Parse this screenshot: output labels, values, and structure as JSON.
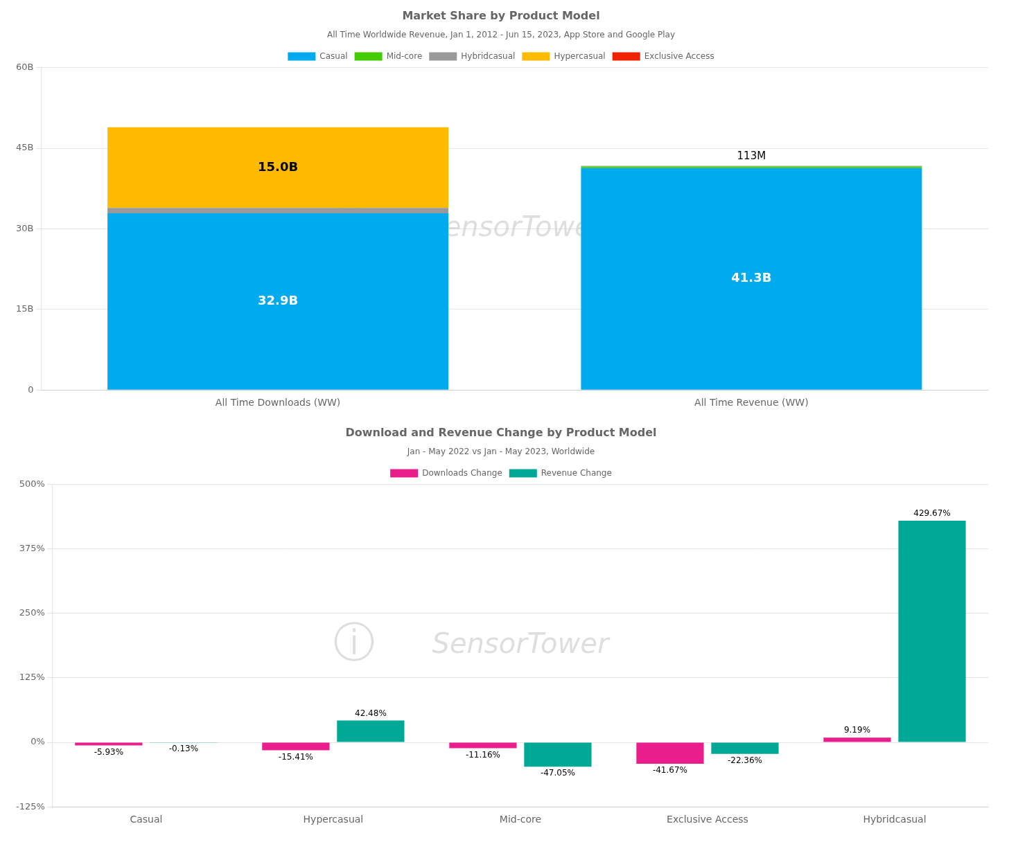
{
  "chart_data": [
    {
      "type": "bar",
      "title": "Market Share by Product Model",
      "subtitle": "All Time Worldwide Revenue, Jan 1, 2012 - Jun 15, 2023, App Store and Google Play",
      "stacked": true,
      "categories": [
        "All Time Downloads (WW)",
        "All Time Revenue (WW)"
      ],
      "series": [
        {
          "name": "Casual",
          "color": "#00AAEE",
          "values": [
            32.9,
            41.3
          ],
          "value_labels": [
            "32.9B",
            "41.3B"
          ]
        },
        {
          "name": "Mid-core",
          "color": "#44CC00",
          "values": [
            null,
            0.3
          ]
        },
        {
          "name": "Hybridcasual",
          "color": "#999999",
          "values": [
            1.0,
            0.1
          ]
        },
        {
          "name": "Hypercasual",
          "color": "#FFBB00",
          "values": [
            15.0,
            null
          ],
          "value_labels": [
            "15.0B",
            null
          ]
        },
        {
          "name": "Exclusive Access",
          "color": "#EE2200",
          "values": [
            null,
            null
          ]
        }
      ],
      "data_labels": true,
      "ylim": [
        0,
        60
      ],
      "yticks": [
        0,
        {
          "value": 15,
          "label": "15B"
        },
        {
          "value": 30,
          "label": "30B"
        },
        {
          "value": 45,
          "label": "45B"
        },
        {
          "value": 60,
          "label": "60B"
        }
      ],
      "grid": true,
      "legend": "top",
      "annotations": [
        {
          "text": "113M",
          "category": "All Time Revenue (WW)"
        },
        {
          "text": "SensorTower"
        },
        {
          "text": "ⓘ"
        }
      ]
    },
    {
      "type": "bar",
      "title": "Download and Revenue Change by Product Model",
      "subtitle": "Jan - May 2022 vs Jan - May 2023, Worldwide",
      "categories": [
        "Casual",
        "Hypercasual",
        "Mid-core",
        "Exclusive Access",
        "Hybridcasual"
      ],
      "series": [
        {
          "name": "Downloads Change",
          "color": "#E91E8C",
          "values": [
            -5.93,
            -15.41,
            -11.16,
            -41.67,
            9.19
          ],
          "value_labels": [
            "-5.93%",
            "-15.41%",
            "-11.16%",
            "-41.67%",
            "9.19%"
          ]
        },
        {
          "name": "Revenue Change",
          "color": "#00A896",
          "values": [
            -0.13,
            42.48,
            -47.05,
            -22.36,
            429.67
          ],
          "value_labels": [
            "-0.13%",
            "42.48%",
            "-47.05%",
            "-22.36%",
            "429.67%"
          ]
        }
      ],
      "data_labels": true,
      "ylim": [
        -125,
        500
      ],
      "yticks": [
        {
          "value": -125,
          "label": "-125%"
        },
        {
          "value": 0,
          "label": "0%"
        },
        {
          "value": 125,
          "label": "125%"
        },
        {
          "value": 250,
          "label": "250%"
        },
        {
          "value": 375,
          "label": "375%"
        },
        {
          "value": 500,
          "label": "500%"
        }
      ],
      "grid": true,
      "legend": "top",
      "annotations": [
        {
          "text": "SensorTower"
        },
        {
          "text": "ⓘ"
        }
      ]
    }
  ]
}
